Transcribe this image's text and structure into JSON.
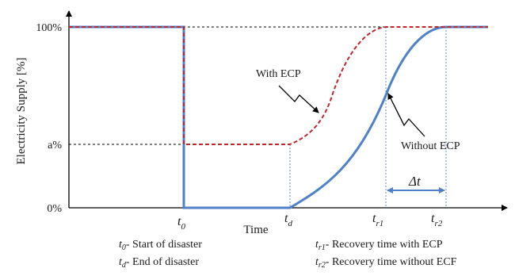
{
  "axes": {
    "ylabel": "Electricity Supply [%]",
    "xlabel": "Time",
    "y_ticks": [
      "100%",
      "a%",
      "0%"
    ]
  },
  "time_markers": [
    {
      "base": "t",
      "sub": "0"
    },
    {
      "base": "t",
      "sub": "d"
    },
    {
      "base": "t",
      "sub": "r1"
    },
    {
      "base": "t",
      "sub": "r2"
    }
  ],
  "annotations": {
    "with_ecp": "With ECP",
    "without_ecp": "Without ECP",
    "delta_t": "Δt"
  },
  "legend": {
    "left": [
      {
        "sym": "t",
        "sub": "0",
        "text": "- Start of disaster"
      },
      {
        "sym": "t",
        "sub": "d",
        "text": "- End of disaster"
      }
    ],
    "right": [
      {
        "sym": "t",
        "sub": "r1",
        "text": "- Recovery time with ECP"
      },
      {
        "sym": "t",
        "sub": "r2",
        "text": "- Recovery time without  ECF"
      }
    ]
  },
  "colors": {
    "with_ecp": "#c0262d",
    "without_ecp": "#4f81c7",
    "axis": "#000000",
    "guide": "#000000"
  }
}
